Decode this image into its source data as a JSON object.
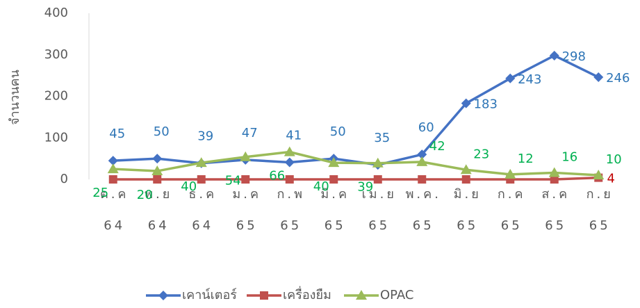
{
  "chart_data": {
    "type": "line",
    "y_label": "จำนวนคน",
    "categories": [
      "ต.ค 64",
      "พ.ย 64",
      "ธ.ค 64",
      "ม.ค 65",
      "ก.พ 65",
      "มี.ค 65",
      "เม.ย 65",
      "พ.ค. 65",
      "มิ.ย 65",
      "ก.ค 65",
      "ส.ค 65",
      "ก.ย 65"
    ],
    "series": [
      {
        "name": "เคาน์เตอร์",
        "color": "#4472c4",
        "label_color": "#2e75b6",
        "marker": "diamond",
        "values": [
          45,
          50,
          39,
          47,
          41,
          50,
          35,
          60,
          183,
          243,
          298,
          246
        ]
      },
      {
        "name": "เครื่องยืม",
        "color": "#c0504d",
        "label_color": "#c00000",
        "marker": "square",
        "values": [
          0,
          0,
          0,
          0,
          0,
          0,
          0,
          0,
          0,
          0,
          0,
          4
        ],
        "value_labels": [
          null,
          null,
          null,
          null,
          null,
          null,
          null,
          null,
          null,
          null,
          null,
          "4"
        ]
      },
      {
        "name": "OPAC",
        "color": "#9bbb59",
        "label_color": "#00b050",
        "marker": "triangle",
        "values": [
          25,
          20,
          40,
          54,
          66,
          40,
          39,
          42,
          23,
          12,
          16,
          10
        ]
      }
    ],
    "ylim": [
      0,
      400
    ],
    "yticks": [
      0,
      100,
      200,
      300,
      400
    ],
    "grid": false,
    "legend": "bottom"
  }
}
